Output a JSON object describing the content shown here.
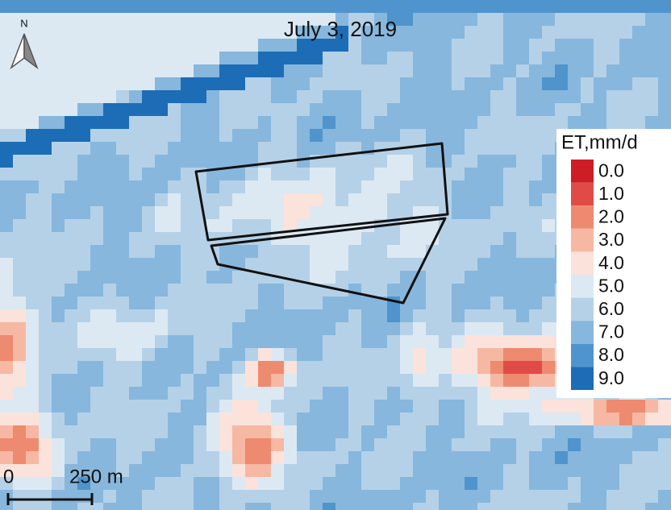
{
  "map": {
    "title": "July 3, 2019",
    "north_label": "N",
    "legend": {
      "title": "ET,mm/d",
      "items": [
        {
          "label": "0.0",
          "color": "#cc1e24"
        },
        {
          "label": "1.0",
          "color": "#e04b48"
        },
        {
          "label": "2.0",
          "color": "#ee8a6f"
        },
        {
          "label": "3.0",
          "color": "#f6b8a3"
        },
        {
          "label": "4.0",
          "color": "#fbe2da"
        },
        {
          "label": "5.0",
          "color": "#dce9f3"
        },
        {
          "label": "6.0",
          "color": "#b5d1e8"
        },
        {
          "label": "7.0",
          "color": "#87b7dd"
        },
        {
          "label": "8.0",
          "color": "#4f94cc"
        },
        {
          "label": "9.0",
          "color": "#1c6db6"
        }
      ]
    },
    "scale_bar": {
      "start_label": "0",
      "end_label": "250 m"
    }
  }
}
